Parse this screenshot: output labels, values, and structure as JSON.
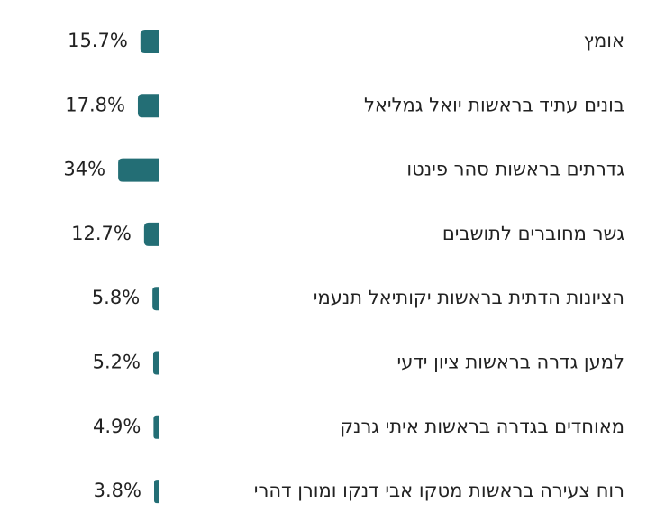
{
  "chart_data": {
    "type": "bar",
    "orientation": "horizontal",
    "direction": "rtl",
    "bar_color": "#236e75",
    "value_suffix": "%",
    "categories": [
      "אומץ",
      "בונים עתיד בראשות יואל גמליאל",
      "גדרתים בראשות סהר פינטו",
      "גשר מחוברים לתושבים",
      "הציונות הדתית בראשות יקותיאל תנעמי",
      "למען גדרה בראשות ציון ידעי",
      "מאוחדים בגדרה בראשות איתי גרנק",
      "רוח צעירה בראשות מטקו אבי דנקו ומורן דהרי"
    ],
    "values": [
      15.7,
      17.8,
      34,
      12.7,
      5.8,
      5.2,
      4.9,
      3.8
    ],
    "value_labels": [
      "15.7%",
      "17.8%",
      "34%",
      "12.7%",
      "5.8%",
      "5.2%",
      "4.9%",
      "3.8%"
    ]
  }
}
